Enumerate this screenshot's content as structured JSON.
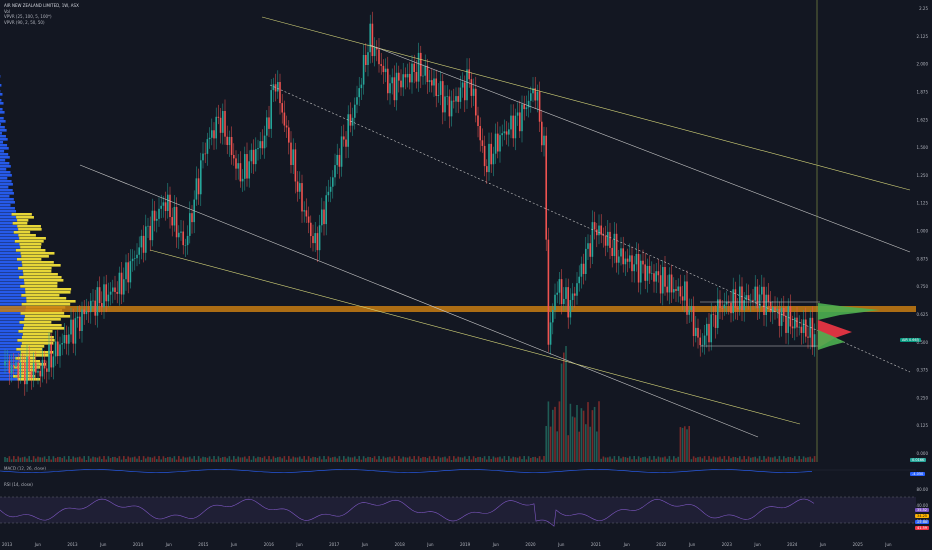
{
  "header": {
    "symbol_line": "AIR NEW ZEALAND LIMITED, 1W, ASX",
    "indicator_1": "Vol",
    "indicator_2": "VPVR (25, 100, 5, 100*)",
    "indicator_3": "VPVR (90, 2, 50, 50)"
  },
  "macd": {
    "label": "MACD (12, 26, close)"
  },
  "rsi": {
    "label": "RSI (14, close)",
    "values": [
      "35.52",
      "34.25",
      "17.60",
      "41.59"
    ],
    "levels": [
      "80.00",
      "40.00",
      "20.00"
    ]
  },
  "price_badges": [
    {
      "text": "AIR 0.665",
      "color": "#089981"
    },
    {
      "text": "0.016K",
      "color": "#26a69a"
    },
    {
      "text": "-4.050",
      "color": "#2962ff"
    }
  ],
  "y_axis_labels": [
    "2.25",
    "2.125",
    "2.000",
    "1.875",
    "1.625",
    "1.500",
    "1.250",
    "1.125",
    "1.000",
    "0.875",
    "0.750",
    "0.625",
    "0.500",
    "0.375",
    "0.250",
    "0.125",
    "0.000"
  ],
  "x_axis_labels": [
    "2013",
    "Jun",
    "2013",
    "Jun",
    "2014",
    "Jun",
    "2015",
    "Jun",
    "2016",
    "Jun",
    "2017",
    "Jun",
    "2018",
    "Jun",
    "2019",
    "Jun",
    "2020",
    "Jun",
    "2021",
    "Jun",
    "2022",
    "Jun",
    "2023",
    "Jun",
    "2024",
    "Jun",
    "2025",
    "Jun"
  ],
  "colors": {
    "background": "#131722",
    "up": "#26a69a",
    "down": "#ef5350",
    "volume_up": "#1f5c55",
    "volume_down": "#7a2a2a",
    "trendline": "#c8c8c8",
    "trendline_yellow": "#d6d67a",
    "zone": "#c87d12",
    "vp_blue": "#2962ff",
    "vp_yellow": "#ffeb3b",
    "vp_green": "#4caf50",
    "vp_red": "#f23645",
    "rsi_line": "#7e57c2"
  },
  "chart_data": {
    "type": "candlestick",
    "title": "AIR NEW ZEALAND LIMITED, 1W, ASX",
    "x": [
      "2013",
      "2014",
      "2015",
      "2016",
      "2017",
      "2018",
      "2019",
      "2020",
      "2021",
      "2022",
      "2023",
      "2024"
    ],
    "close_approx": [
      0.85,
      1.1,
      1.45,
      1.65,
      1.95,
      1.85,
      1.8,
      0.8,
      0.9,
      0.65,
      0.75,
      0.665
    ],
    "ylim": [
      0,
      2.25
    ],
    "last_price": 0.665
  }
}
